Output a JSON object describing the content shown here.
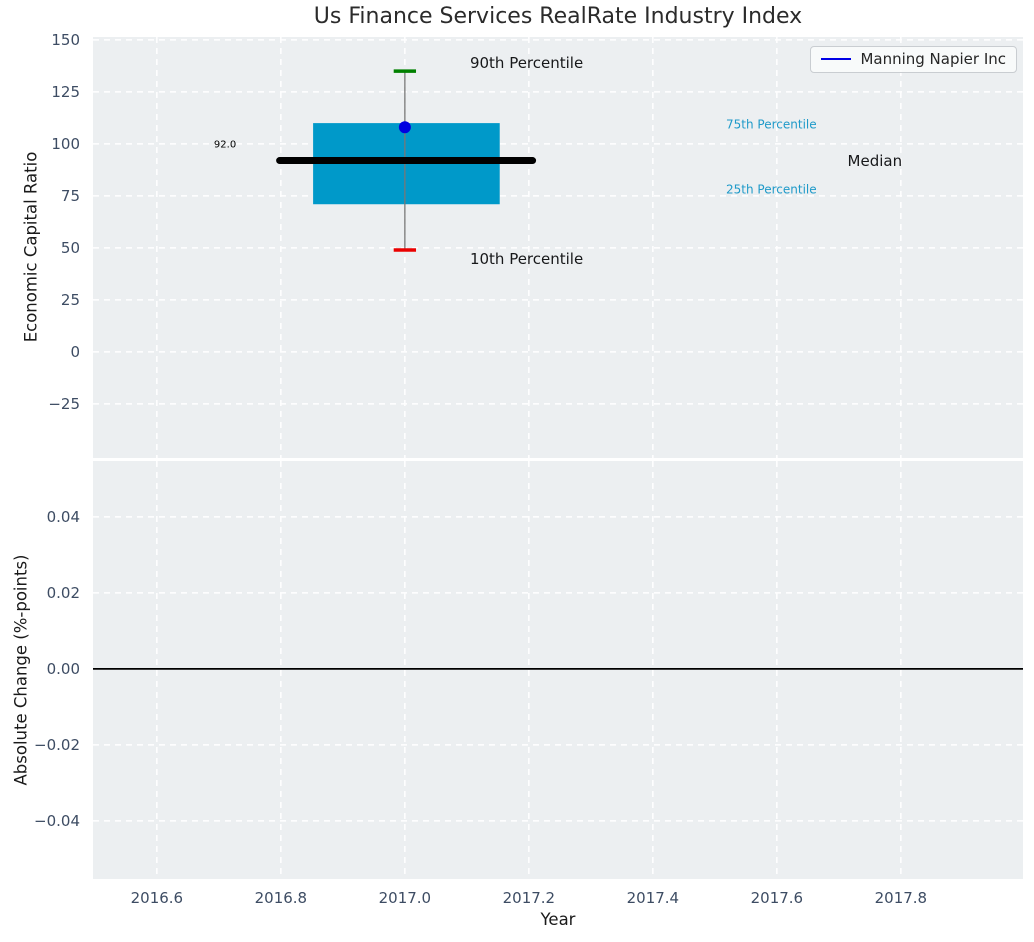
{
  "title": "Us Finance Services RealRate Industry Index",
  "chart_data": {
    "type": "boxplot",
    "title": "Us Finance Services RealRate Industry Index",
    "background_color": "#eceff1",
    "grid": {
      "color": "#ffffff",
      "style": "dashed",
      "on": true
    },
    "legend": {
      "position": "top-right",
      "entries": [
        {
          "label": "Manning Napier Inc",
          "color": "#0000e6"
        }
      ]
    },
    "axes": [
      {
        "ylabel": "Economic Capital Ratio",
        "xlim": [
          2016.497,
          2017.997
        ],
        "ylim": [
          -51.0,
          151.4
        ],
        "yticks": [
          {
            "v": 150,
            "label": "150"
          },
          {
            "v": 125,
            "label": "125"
          },
          {
            "v": 100,
            "label": "100"
          },
          {
            "v": 75,
            "label": "75"
          },
          {
            "v": 50,
            "label": "50"
          },
          {
            "v": 25,
            "label": "25"
          },
          {
            "v": 0,
            "label": "0"
          },
          {
            "v": -25,
            "label": "−25"
          }
        ],
        "xticks": [
          {
            "v": 2016.6,
            "label": "2016.6"
          },
          {
            "v": 2016.8,
            "label": "2016.8"
          },
          {
            "v": 2017.0,
            "label": "2017.0"
          },
          {
            "v": 2017.2,
            "label": "2017.2"
          },
          {
            "v": 2017.4,
            "label": "2017.4"
          },
          {
            "v": 2017.6,
            "label": "2017.6"
          },
          {
            "v": 2017.8,
            "label": "2017.8"
          }
        ],
        "xtick_labels_visible": false,
        "boxplot": {
          "x": 2017.0,
          "p90": 135,
          "p75": 110,
          "median": 92,
          "p25": 71,
          "p10": 49,
          "company_value": 108,
          "median_label": "92.0",
          "box_x_range": [
            2016.852,
            2017.153
          ],
          "median_x_range": [
            2016.798,
            2017.206
          ],
          "cap_half_width_years": 0.018,
          "colors": {
            "box": "#0099c9",
            "median": "#000000",
            "p90_cap": "#008000",
            "p10_cap": "#ea0000",
            "whisker": "#777777",
            "company_dot": "#0000e0"
          }
        },
        "annotations": [
          {
            "text": "90th Percentile",
            "x": 2017.105,
            "y": 139.0,
            "size": 15,
            "color": "#17181a",
            "anchor": "start"
          },
          {
            "text": "10th Percentile",
            "x": 2017.105,
            "y": 44.5,
            "size": 15,
            "color": "#17181a",
            "anchor": "start"
          },
          {
            "text": "75th Percentile",
            "x": 2017.518,
            "y": 109.0,
            "size": 12,
            "color": "#1f9ac9",
            "anchor": "start"
          },
          {
            "text": "25th Percentile",
            "x": 2017.518,
            "y": 78.0,
            "size": 12,
            "color": "#1f9ac9",
            "anchor": "start"
          },
          {
            "text": "Median",
            "x": 2017.758,
            "y": 91.8,
            "size": 15,
            "color": "#17181a",
            "anchor": "middle"
          },
          {
            "text": "92.0",
            "x": 2016.71,
            "y": 99.5,
            "size": 10,
            "color": "#000000",
            "anchor": "middle"
          }
        ]
      },
      {
        "ylabel": "Absolute Change (%-points)",
        "xlabel": "Year",
        "xlim": [
          2016.497,
          2017.997
        ],
        "ylim": [
          -0.0553,
          0.0547
        ],
        "yticks": [
          {
            "v": 0.04,
            "label": "0.04"
          },
          {
            "v": 0.02,
            "label": "0.02"
          },
          {
            "v": 0.0,
            "label": "0.00"
          },
          {
            "v": -0.02,
            "label": "−0.02"
          },
          {
            "v": -0.04,
            "label": "−0.04"
          }
        ],
        "xticks": [
          {
            "v": 2016.6,
            "label": "2016.6"
          },
          {
            "v": 2016.8,
            "label": "2016.8"
          },
          {
            "v": 2017.0,
            "label": "2017.0"
          },
          {
            "v": 2017.2,
            "label": "2017.2"
          },
          {
            "v": 2017.4,
            "label": "2017.4"
          },
          {
            "v": 2017.6,
            "label": "2017.6"
          },
          {
            "v": 2017.8,
            "label": "2017.8"
          }
        ],
        "xtick_labels_visible": true,
        "zero_line": {
          "y": 0.0,
          "color": "#000000"
        }
      }
    ]
  }
}
